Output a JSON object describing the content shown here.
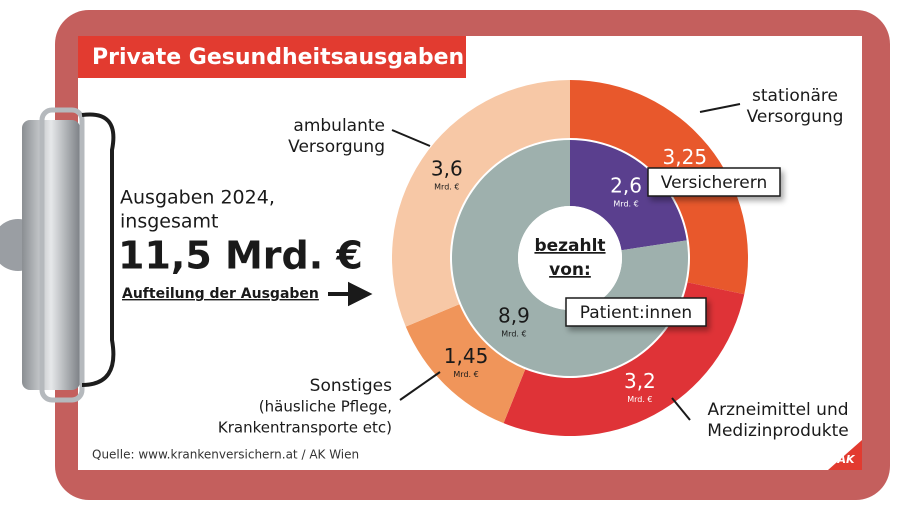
{
  "chart_data": {
    "type": "donut",
    "title": "Private Gesundheitsausgaben",
    "intro_lines": [
      "Ausgaben 2024,",
      "insgesamt"
    ],
    "total": {
      "value": 11.5,
      "label": "11,5 Mrd. €"
    },
    "link_text": "Aufteilung der Ausgaben",
    "center_label_lines": [
      "bezahlt",
      "von:"
    ],
    "unit": "Mrd. €",
    "outer": {
      "categories": [
        [
          "stationäre",
          "Versorgung"
        ],
        [
          "Arzneimittel und",
          "Medizinprodukte"
        ],
        [
          "Sonstiges",
          "(häusliche Pflege,",
          "Krankentransporte etc)"
        ],
        [
          "ambulante",
          "Versorgung"
        ]
      ],
      "values": [
        3.25,
        3.2,
        1.45,
        3.6
      ],
      "value_labels": [
        "3,25",
        "3,2",
        "1,45",
        "3,6"
      ],
      "colors": [
        "#e8582c",
        "#df3337",
        "#f0955a",
        "#f7c8a6"
      ]
    },
    "inner": {
      "categories": [
        "Versicherern",
        "Patient:innen"
      ],
      "values": [
        2.6,
        8.9
      ],
      "value_labels": [
        "2,6",
        "8,9"
      ],
      "colors": [
        "#5a3f8e",
        "#9eb0ad"
      ]
    },
    "source": "Quelle: www.krankenversichern.at / AK Wien",
    "logo": "AK"
  }
}
